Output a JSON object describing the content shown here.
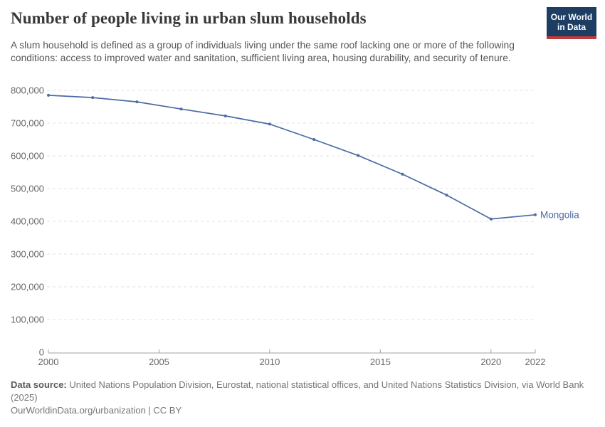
{
  "header": {
    "title": "Number of people living in urban slum households",
    "subtitle": "A slum household is defined as a group of individuals living under the same roof lacking one or more of the following conditions: access to improved water and sanitation, sufficient living area, housing durability, and security of tenure.",
    "logo": {
      "line1": "Our World",
      "line2": "in Data",
      "bg_color": "#1d3d63",
      "bar_color": "#c5393b"
    }
  },
  "chart_data": {
    "type": "line",
    "title": "Number of people living in urban slum households",
    "x": [
      2000,
      2002,
      2004,
      2006,
      2008,
      2010,
      2012,
      2014,
      2016,
      2018,
      2020,
      2022
    ],
    "series": [
      {
        "name": "Mongolia",
        "color": "#4c6aa3",
        "values": [
          785000,
          778000,
          765000,
          743000,
          722000,
          697000,
          650000,
          601000,
          544000,
          480000,
          407000,
          420000
        ]
      }
    ],
    "end_label": "Mongolia",
    "xlabel": "",
    "ylabel": "",
    "xlim": [
      2000,
      2022
    ],
    "ylim": [
      0,
      800000
    ],
    "x_ticks": [
      2000,
      2005,
      2010,
      2015,
      2020,
      2022
    ],
    "y_ticks": [
      0,
      100000,
      200000,
      300000,
      400000,
      500000,
      600000,
      700000,
      800000
    ],
    "y_tick_labels": [
      "0",
      "100,000",
      "200,000",
      "300,000",
      "400,000",
      "500,000",
      "600,000",
      "700,000",
      "800,000"
    ],
    "grid": "horizontal-dashed",
    "legend_position": "end-of-line-label",
    "colors": {
      "grid": "#e0e0e0",
      "axis": "#a3a3a3",
      "tick_text": "#676767"
    }
  },
  "footer": {
    "datasource_label": "Data source:",
    "datasource_text": " United Nations Population Division, Eurostat, national statistical offices, and United Nations Statistics Division, via World Bank (2025)",
    "link_text": "OurWorldinData.org/urbanization | CC BY"
  }
}
